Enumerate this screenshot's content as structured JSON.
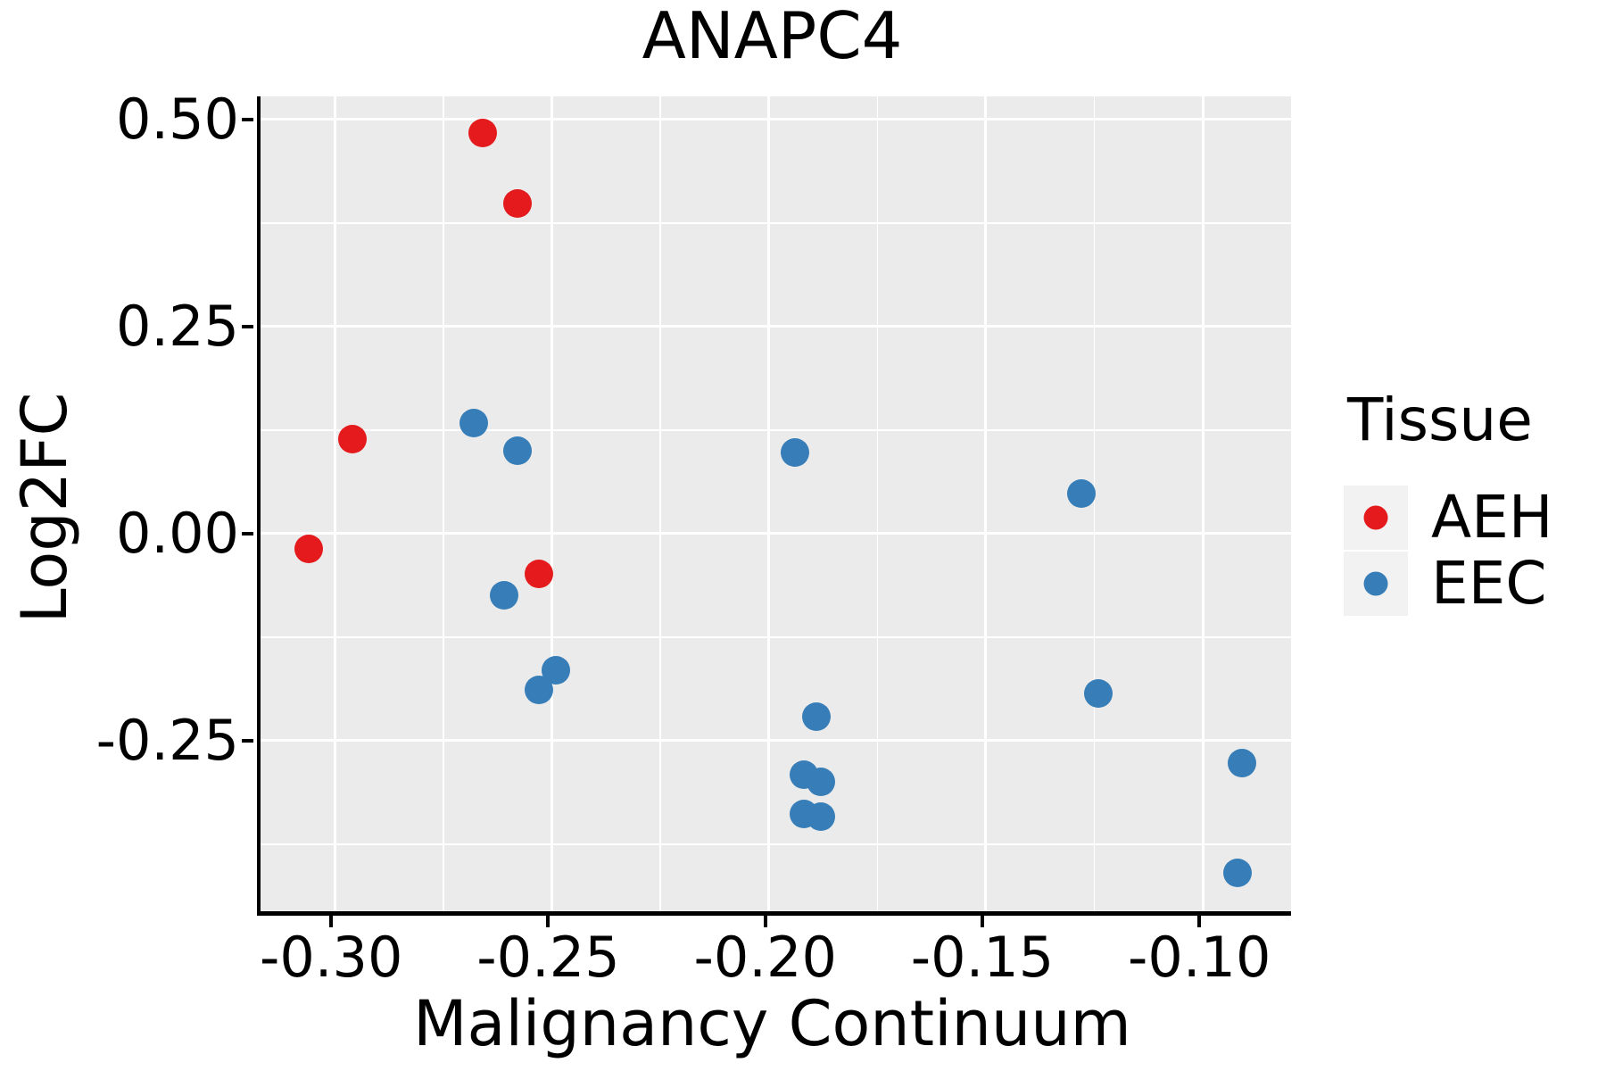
{
  "figure": {
    "title": "ANAPC4",
    "background_color": "#ffffff",
    "panel_background_color": "#ebebeb",
    "grid_color": "#ffffff",
    "axis_line_color": "#000000",
    "text_color": "#000000"
  },
  "legend": {
    "title": "Tissue",
    "position": "right",
    "key_background_color": "#f2f2f2",
    "entries": [
      {
        "label": "AEH",
        "color": "#e41a1c"
      },
      {
        "label": "EEC",
        "color": "#377eb8"
      }
    ]
  },
  "chart_data": {
    "type": "scatter",
    "title": "ANAPC4",
    "xlabel": "Malignancy Continuum",
    "ylabel": "Log2FC",
    "xlim": [
      -0.3171,
      -0.0797
    ],
    "ylim": [
      -0.456,
      0.528
    ],
    "grid": "major and minor white gridlines on gray panel",
    "legend_position": "right",
    "x_ticks": [
      {
        "value": -0.3,
        "label": "-0.30"
      },
      {
        "value": -0.25,
        "label": "-0.25"
      },
      {
        "value": -0.2,
        "label": "-0.20"
      },
      {
        "value": -0.15,
        "label": "-0.15"
      },
      {
        "value": -0.1,
        "label": "-0.10"
      }
    ],
    "y_ticks": [
      {
        "value": 0.5,
        "label": "0.50"
      },
      {
        "value": 0.25,
        "label": "0.25"
      },
      {
        "value": 0.0,
        "label": "0.00"
      },
      {
        "value": -0.25,
        "label": "-0.25"
      }
    ],
    "x_minor_gridlines": [
      -0.275,
      -0.225,
      -0.175,
      -0.125
    ],
    "y_minor_gridlines": [
      0.375,
      0.125,
      -0.125,
      -0.375
    ],
    "series": [
      {
        "name": "AEH",
        "color": "#e41a1c",
        "points": [
          [
            -0.266,
            0.484
          ],
          [
            -0.258,
            0.399
          ],
          [
            -0.296,
            0.114
          ],
          [
            -0.306,
            -0.018
          ],
          [
            -0.253,
            -0.049
          ]
        ]
      },
      {
        "name": "EEC",
        "color": "#377eb8",
        "points": [
          [
            -0.268,
            0.133
          ],
          [
            -0.258,
            0.1
          ],
          [
            -0.194,
            0.098
          ],
          [
            -0.128,
            0.048
          ],
          [
            -0.261,
            -0.075
          ],
          [
            -0.249,
            -0.165
          ],
          [
            -0.253,
            -0.189
          ],
          [
            -0.189,
            -0.221
          ],
          [
            -0.124,
            -0.193
          ],
          [
            -0.192,
            -0.291
          ],
          [
            -0.188,
            -0.3
          ],
          [
            -0.192,
            -0.339
          ],
          [
            -0.188,
            -0.342
          ],
          [
            -0.091,
            -0.277
          ],
          [
            -0.092,
            -0.41
          ]
        ]
      }
    ]
  }
}
